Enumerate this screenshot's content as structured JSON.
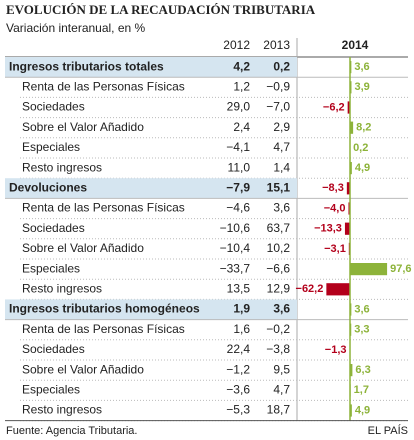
{
  "header": {
    "title": "EVOLUCIÓN DE LA RECAUDACIÓN TRIBUTARIA",
    "subtitle": "Variación interanual, en %"
  },
  "table": {
    "columns": [
      "2012",
      "2013",
      "2014"
    ],
    "rows": [
      {
        "label": "Ingresos tributarios totales",
        "section": true,
        "cells": [
          "4,2",
          "0,2"
        ]
      },
      {
        "label": "Renta de las Personas Físicas",
        "section": false,
        "cells": [
          "1,2",
          "−0,9"
        ]
      },
      {
        "label": "Sociedades",
        "section": false,
        "cells": [
          "29,0",
          "−7,0"
        ]
      },
      {
        "label": "Sobre el Valor Añadido",
        "section": false,
        "cells": [
          "2,4",
          "2,9"
        ]
      },
      {
        "label": "Especiales",
        "section": false,
        "cells": [
          "−4,1",
          "4,7"
        ]
      },
      {
        "label": "Resto ingresos",
        "section": false,
        "cells": [
          "11,0",
          "1,4"
        ]
      },
      {
        "label": "Devoluciones",
        "section": true,
        "cells": [
          "−7,9",
          "15,1"
        ]
      },
      {
        "label": "Renta de las Personas Físicas",
        "section": false,
        "cells": [
          "−4,6",
          "3,6"
        ]
      },
      {
        "label": "Sociedades",
        "section": false,
        "cells": [
          "−10,6",
          "63,7"
        ]
      },
      {
        "label": "Sobre el Valor Añadido",
        "section": false,
        "cells": [
          "−10,4",
          "10,2"
        ]
      },
      {
        "label": "Especiales",
        "section": false,
        "cells": [
          "−33,7",
          "−6,6"
        ]
      },
      {
        "label": "Resto ingresos",
        "section": false,
        "cells": [
          "13,5",
          "12,9"
        ]
      },
      {
        "label": "Ingresos tributarios homogéneos",
        "section": true,
        "cells": [
          "1,9",
          "3,6"
        ]
      },
      {
        "label": "Renta de las Personas Físicas",
        "section": false,
        "cells": [
          "1,6",
          "−0,2"
        ]
      },
      {
        "label": "Sociedades",
        "section": false,
        "cells": [
          "22,4",
          "−3,8"
        ]
      },
      {
        "label": "Sobre el Valor Añadido",
        "section": false,
        "cells": [
          "−1,2",
          "9,5"
        ]
      },
      {
        "label": "Especiales",
        "section": false,
        "cells": [
          "−3,6",
          "4,7"
        ]
      },
      {
        "label": "Resto ingresos",
        "section": false,
        "cells": [
          "−5,3",
          "18,7"
        ]
      }
    ]
  },
  "bars": {
    "values": [
      3.6,
      3.9,
      -6.2,
      8.2,
      0.2,
      4.9,
      -8.3,
      -4.0,
      -13.3,
      -3.1,
      97.6,
      -62.2,
      3.6,
      3.3,
      -1.3,
      6.3,
      1.7,
      4.9
    ],
    "value_labels": [
      "3,6",
      "3,9",
      "−6,2",
      "8,2",
      "0,2",
      "4,9",
      "−8,3",
      "−4,0",
      "−13,3",
      "−3,1",
      "97,6",
      "−62,2",
      "3,6",
      "3,3",
      "−1,3",
      "6,3",
      "1,7",
      "4,9"
    ],
    "positive_color": "#8db33a",
    "negative_color": "#b3001b"
  },
  "footer": {
    "source": "Fuente: Agencia Tributaria.",
    "brand": "EL PAÍS"
  }
}
